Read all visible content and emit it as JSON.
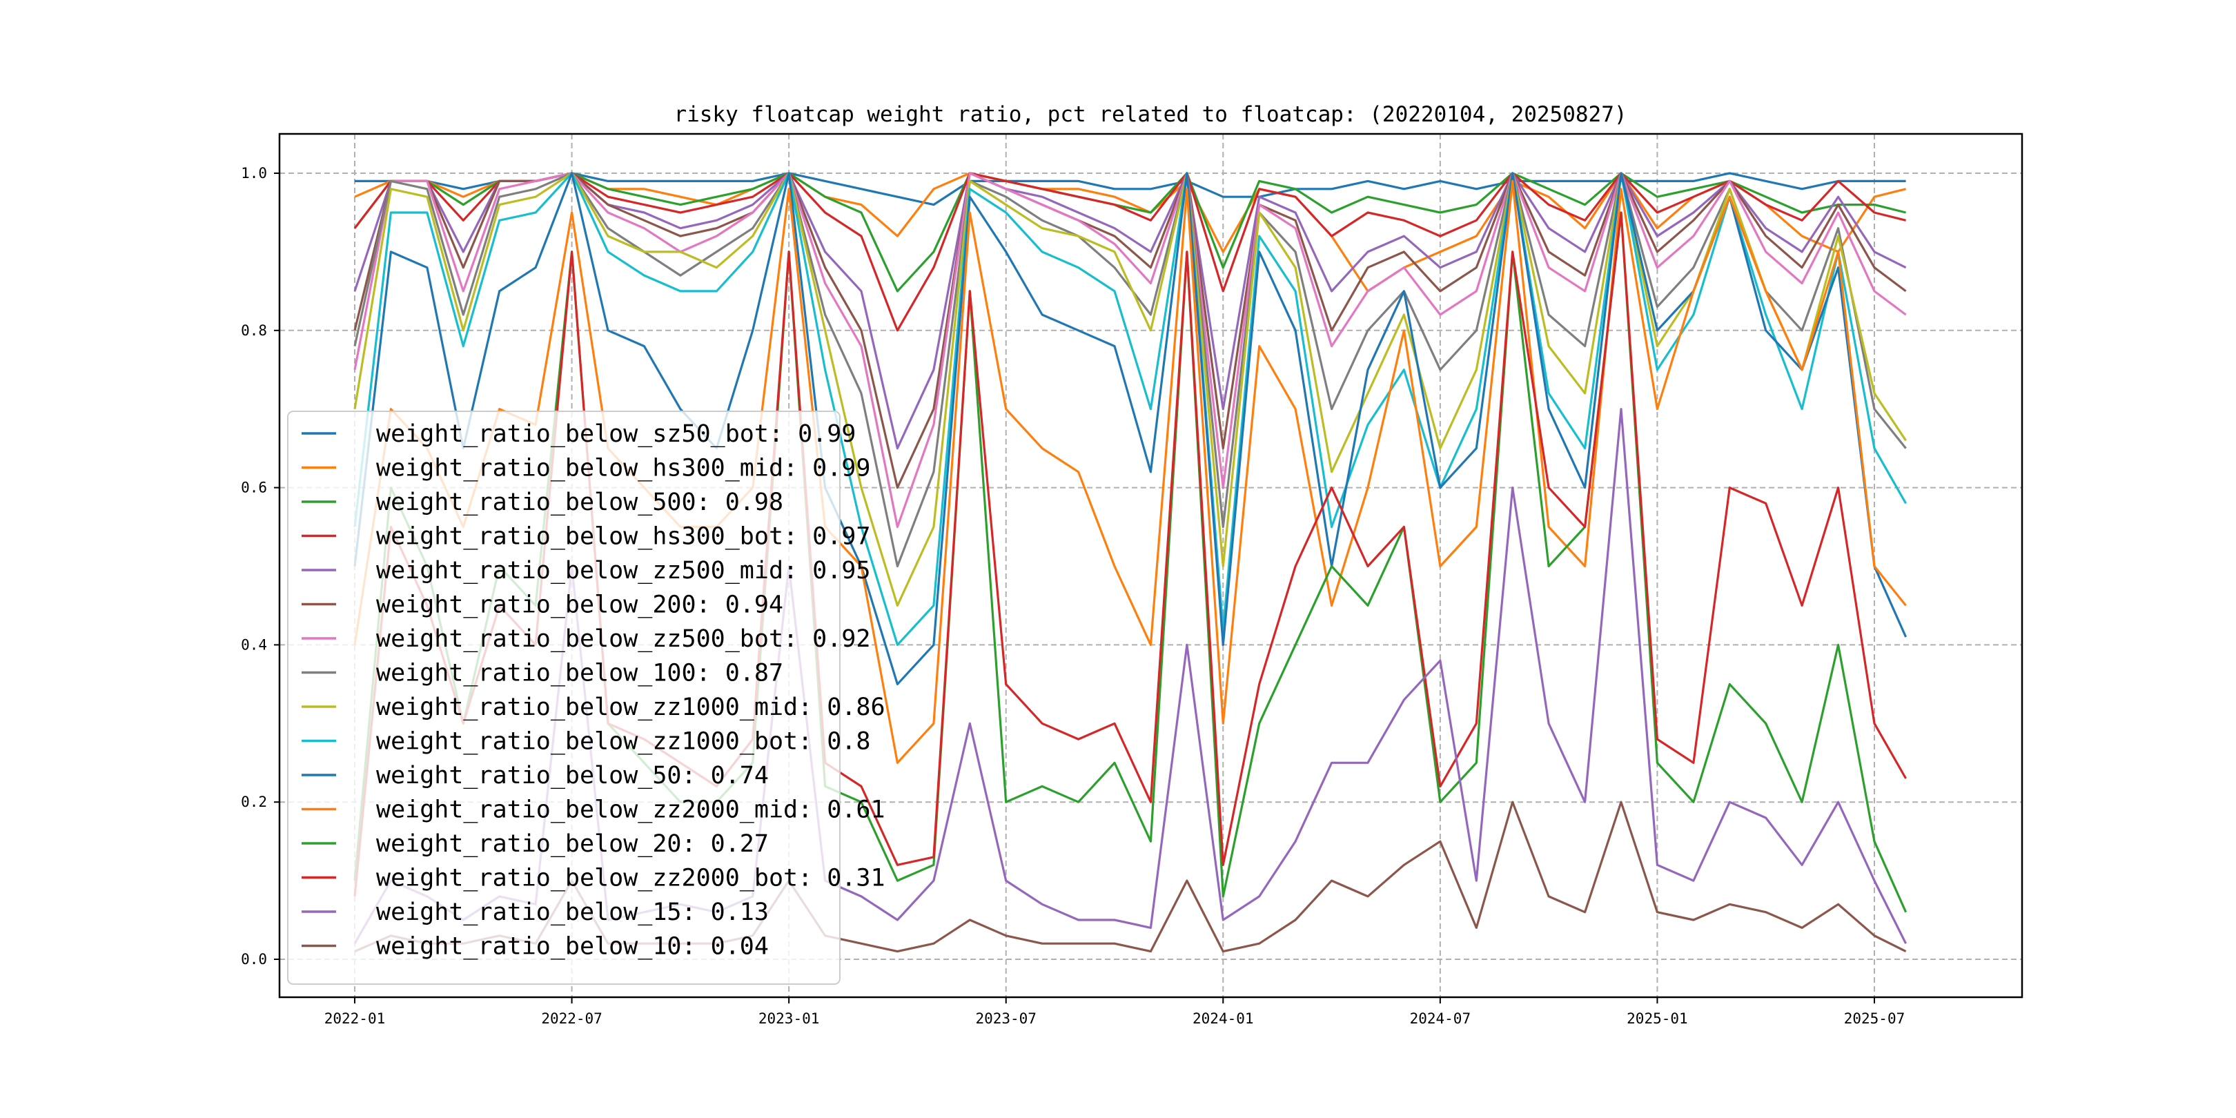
{
  "chart_data": {
    "type": "line",
    "title": "risky floatcap weight ratio, pct related to floatcap: (20220104, 20250827)",
    "xlabel": "",
    "ylabel": "",
    "ylim": [
      -0.05,
      1.05
    ],
    "grid": true,
    "legend_placement": "lower-left",
    "x": [
      "2022-01",
      "2022-02",
      "2022-03",
      "2022-04",
      "2022-05",
      "2022-06",
      "2022-07",
      "2022-08",
      "2022-09",
      "2022-10",
      "2022-11",
      "2022-12",
      "2023-01",
      "2023-02",
      "2023-03",
      "2023-04",
      "2023-05",
      "2023-06",
      "2023-07",
      "2023-08",
      "2023-09",
      "2023-10",
      "2023-11",
      "2023-12",
      "2024-01",
      "2024-02",
      "2024-03",
      "2024-04",
      "2024-05",
      "2024-06",
      "2024-07",
      "2024-08",
      "2024-09",
      "2024-10",
      "2024-11",
      "2024-12",
      "2025-01",
      "2025-02",
      "2025-03",
      "2025-04",
      "2025-05",
      "2025-06",
      "2025-07",
      "2025-08"
    ],
    "x_ticks": [
      "2022-01",
      "2022-07",
      "2023-01",
      "2023-07",
      "2024-01",
      "2024-07",
      "2025-01",
      "2025-07"
    ],
    "y_ticks": [
      "0.0",
      "0.2",
      "0.4",
      "0.6",
      "0.8",
      "1.0"
    ],
    "series": [
      {
        "name": "weight_ratio_below_sz50_bot: 0.99",
        "color": "#1f77b4",
        "values": [
          0.99,
          0.99,
          0.99,
          0.98,
          0.99,
          0.99,
          1.0,
          0.99,
          0.99,
          0.99,
          0.99,
          0.99,
          1.0,
          0.99,
          0.98,
          0.97,
          0.96,
          0.99,
          0.99,
          0.99,
          0.99,
          0.98,
          0.98,
          0.99,
          0.97,
          0.97,
          0.98,
          0.98,
          0.99,
          0.98,
          0.99,
          0.98,
          0.99,
          0.99,
          0.99,
          0.99,
          0.99,
          0.99,
          1.0,
          0.99,
          0.98,
          0.99,
          0.99,
          0.99
        ]
      },
      {
        "name": "weight_ratio_below_hs300_mid: 0.99",
        "color": "#ff7f0e",
        "values": [
          0.97,
          0.99,
          0.99,
          0.97,
          0.99,
          0.99,
          1.0,
          0.98,
          0.98,
          0.97,
          0.96,
          0.98,
          1.0,
          0.97,
          0.96,
          0.92,
          0.98,
          1.0,
          0.99,
          0.98,
          0.98,
          0.97,
          0.95,
          0.99,
          0.9,
          0.98,
          0.97,
          0.92,
          0.85,
          0.88,
          0.9,
          0.92,
          0.99,
          0.97,
          0.93,
          1.0,
          0.93,
          0.97,
          0.99,
          0.96,
          0.92,
          0.9,
          0.97,
          0.98
        ]
      },
      {
        "name": "weight_ratio_below_500: 0.98",
        "color": "#2ca02c",
        "values": [
          0.93,
          0.99,
          0.99,
          0.96,
          0.99,
          0.99,
          1.0,
          0.98,
          0.97,
          0.96,
          0.97,
          0.98,
          1.0,
          0.97,
          0.95,
          0.85,
          0.9,
          1.0,
          0.99,
          0.98,
          0.97,
          0.96,
          0.95,
          1.0,
          0.88,
          0.99,
          0.98,
          0.95,
          0.97,
          0.96,
          0.95,
          0.96,
          1.0,
          0.98,
          0.96,
          1.0,
          0.97,
          0.98,
          0.99,
          0.97,
          0.95,
          0.96,
          0.96,
          0.95
        ]
      },
      {
        "name": "weight_ratio_below_hs300_bot: 0.97",
        "color": "#d62728",
        "values": [
          0.93,
          0.99,
          0.99,
          0.94,
          0.99,
          0.99,
          1.0,
          0.97,
          0.96,
          0.95,
          0.96,
          0.97,
          1.0,
          0.95,
          0.92,
          0.8,
          0.88,
          1.0,
          0.99,
          0.98,
          0.97,
          0.96,
          0.94,
          1.0,
          0.85,
          0.98,
          0.97,
          0.92,
          0.95,
          0.94,
          0.92,
          0.94,
          1.0,
          0.96,
          0.94,
          1.0,
          0.95,
          0.97,
          0.99,
          0.96,
          0.94,
          0.99,
          0.95,
          0.94
        ]
      },
      {
        "name": "weight_ratio_below_zz500_mid: 0.95",
        "color": "#9467bd",
        "values": [
          0.85,
          0.99,
          0.99,
          0.9,
          0.99,
          0.99,
          1.0,
          0.96,
          0.95,
          0.93,
          0.94,
          0.96,
          1.0,
          0.9,
          0.85,
          0.65,
          0.75,
          1.0,
          0.98,
          0.97,
          0.95,
          0.93,
          0.9,
          1.0,
          0.7,
          0.97,
          0.95,
          0.85,
          0.9,
          0.92,
          0.88,
          0.9,
          1.0,
          0.93,
          0.9,
          1.0,
          0.92,
          0.95,
          0.99,
          0.93,
          0.9,
          0.97,
          0.9,
          0.88
        ]
      },
      {
        "name": "weight_ratio_below_200: 0.94",
        "color": "#8c564b",
        "values": [
          0.8,
          0.99,
          0.99,
          0.88,
          0.99,
          0.99,
          1.0,
          0.96,
          0.94,
          0.92,
          0.93,
          0.95,
          1.0,
          0.88,
          0.8,
          0.6,
          0.7,
          1.0,
          0.98,
          0.96,
          0.94,
          0.92,
          0.88,
          1.0,
          0.65,
          0.96,
          0.94,
          0.8,
          0.88,
          0.9,
          0.85,
          0.88,
          1.0,
          0.9,
          0.87,
          1.0,
          0.9,
          0.94,
          0.99,
          0.92,
          0.88,
          0.96,
          0.88,
          0.85
        ]
      },
      {
        "name": "weight_ratio_below_zz500_bot: 0.92",
        "color": "#e377c2",
        "values": [
          0.75,
          0.99,
          0.99,
          0.85,
          0.98,
          0.99,
          1.0,
          0.95,
          0.93,
          0.9,
          0.92,
          0.95,
          1.0,
          0.86,
          0.78,
          0.55,
          0.68,
          1.0,
          0.98,
          0.96,
          0.94,
          0.91,
          0.86,
          1.0,
          0.6,
          0.96,
          0.93,
          0.78,
          0.85,
          0.88,
          0.82,
          0.85,
          1.0,
          0.88,
          0.85,
          1.0,
          0.88,
          0.92,
          0.99,
          0.9,
          0.86,
          0.95,
          0.85,
          0.82
        ]
      },
      {
        "name": "weight_ratio_below_100: 0.87",
        "color": "#7f7f7f",
        "values": [
          0.78,
          0.99,
          0.98,
          0.82,
          0.97,
          0.98,
          1.0,
          0.93,
          0.9,
          0.87,
          0.9,
          0.93,
          1.0,
          0.82,
          0.72,
          0.5,
          0.62,
          0.99,
          0.97,
          0.94,
          0.92,
          0.88,
          0.82,
          1.0,
          0.55,
          0.95,
          0.9,
          0.7,
          0.8,
          0.85,
          0.75,
          0.8,
          1.0,
          0.82,
          0.78,
          1.0,
          0.83,
          0.88,
          0.98,
          0.85,
          0.8,
          0.93,
          0.7,
          0.65
        ]
      },
      {
        "name": "weight_ratio_below_zz1000_mid: 0.86",
        "color": "#bcbd22",
        "values": [
          0.7,
          0.98,
          0.97,
          0.8,
          0.96,
          0.97,
          1.0,
          0.92,
          0.9,
          0.9,
          0.88,
          0.92,
          1.0,
          0.8,
          0.6,
          0.45,
          0.55,
          0.99,
          0.96,
          0.93,
          0.92,
          0.9,
          0.8,
          1.0,
          0.5,
          0.95,
          0.88,
          0.62,
          0.72,
          0.82,
          0.65,
          0.75,
          1.0,
          0.78,
          0.72,
          1.0,
          0.78,
          0.85,
          0.98,
          0.85,
          0.75,
          0.92,
          0.72,
          0.66
        ]
      },
      {
        "name": "weight_ratio_below_zz1000_bot: 0.8",
        "color": "#17becf",
        "values": [
          0.55,
          0.95,
          0.95,
          0.78,
          0.94,
          0.95,
          1.0,
          0.9,
          0.87,
          0.85,
          0.85,
          0.9,
          1.0,
          0.75,
          0.55,
          0.4,
          0.45,
          0.98,
          0.95,
          0.9,
          0.88,
          0.85,
          0.7,
          1.0,
          0.42,
          0.92,
          0.85,
          0.55,
          0.68,
          0.75,
          0.6,
          0.7,
          1.0,
          0.72,
          0.65,
          1.0,
          0.75,
          0.82,
          0.97,
          0.82,
          0.7,
          0.9,
          0.65,
          0.58
        ]
      },
      {
        "name": "weight_ratio_below_50: 0.74",
        "color": "#1f77b4",
        "values": [
          0.5,
          0.9,
          0.88,
          0.65,
          0.85,
          0.88,
          1.0,
          0.8,
          0.78,
          0.7,
          0.65,
          0.8,
          1.0,
          0.6,
          0.5,
          0.35,
          0.4,
          0.97,
          0.9,
          0.82,
          0.8,
          0.78,
          0.62,
          1.0,
          0.4,
          0.9,
          0.8,
          0.5,
          0.75,
          0.85,
          0.6,
          0.65,
          1.0,
          0.7,
          0.6,
          1.0,
          0.8,
          0.85,
          0.97,
          0.8,
          0.75,
          0.88,
          0.5,
          0.41
        ]
      },
      {
        "name": "weight_ratio_below_zz2000_mid: 0.61",
        "color": "#ff7f0e",
        "values": [
          0.4,
          0.7,
          0.65,
          0.55,
          0.7,
          0.68,
          0.95,
          0.65,
          0.6,
          0.55,
          0.55,
          0.6,
          0.98,
          0.55,
          0.5,
          0.25,
          0.3,
          0.95,
          0.7,
          0.65,
          0.62,
          0.5,
          0.4,
          0.98,
          0.3,
          0.78,
          0.7,
          0.45,
          0.6,
          0.8,
          0.5,
          0.55,
          0.99,
          0.55,
          0.5,
          0.98,
          0.7,
          0.85,
          0.97,
          0.85,
          0.75,
          0.9,
          0.5,
          0.45
        ]
      },
      {
        "name": "weight_ratio_below_20: 0.27",
        "color": "#2ca02c",
        "values": [
          0.1,
          0.6,
          0.5,
          0.3,
          0.5,
          0.45,
          0.9,
          0.3,
          0.25,
          0.2,
          0.2,
          0.25,
          0.9,
          0.22,
          0.2,
          0.1,
          0.12,
          0.85,
          0.2,
          0.22,
          0.2,
          0.25,
          0.15,
          0.9,
          0.08,
          0.3,
          0.4,
          0.5,
          0.45,
          0.55,
          0.2,
          0.25,
          0.9,
          0.5,
          0.55,
          0.95,
          0.25,
          0.2,
          0.35,
          0.3,
          0.2,
          0.4,
          0.15,
          0.06
        ]
      },
      {
        "name": "weight_ratio_below_zz2000_bot: 0.31",
        "color": "#d62728",
        "values": [
          0.08,
          0.55,
          0.45,
          0.3,
          0.45,
          0.4,
          0.9,
          0.3,
          0.28,
          0.25,
          0.22,
          0.28,
          0.9,
          0.25,
          0.22,
          0.12,
          0.13,
          0.85,
          0.35,
          0.3,
          0.28,
          0.3,
          0.2,
          0.9,
          0.12,
          0.35,
          0.5,
          0.6,
          0.5,
          0.55,
          0.22,
          0.3,
          0.9,
          0.6,
          0.55,
          0.95,
          0.28,
          0.25,
          0.6,
          0.58,
          0.45,
          0.6,
          0.3,
          0.23
        ]
      },
      {
        "name": "weight_ratio_below_15: 0.13",
        "color": "#9467bd",
        "values": [
          0.02,
          0.1,
          0.08,
          0.05,
          0.08,
          0.07,
          0.5,
          0.05,
          0.06,
          0.07,
          0.06,
          0.08,
          0.5,
          0.1,
          0.08,
          0.05,
          0.1,
          0.3,
          0.1,
          0.07,
          0.05,
          0.05,
          0.04,
          0.4,
          0.05,
          0.08,
          0.15,
          0.25,
          0.25,
          0.33,
          0.38,
          0.1,
          0.6,
          0.3,
          0.2,
          0.7,
          0.12,
          0.1,
          0.2,
          0.18,
          0.12,
          0.2,
          0.1,
          0.02
        ]
      },
      {
        "name": "weight_ratio_below_10: 0.04",
        "color": "#8c564b",
        "values": [
          0.01,
          0.03,
          0.02,
          0.02,
          0.03,
          0.02,
          0.1,
          0.02,
          0.02,
          0.02,
          0.02,
          0.03,
          0.1,
          0.03,
          0.02,
          0.01,
          0.02,
          0.05,
          0.03,
          0.02,
          0.02,
          0.02,
          0.01,
          0.1,
          0.01,
          0.02,
          0.05,
          0.1,
          0.08,
          0.12,
          0.15,
          0.04,
          0.2,
          0.08,
          0.06,
          0.2,
          0.06,
          0.05,
          0.07,
          0.06,
          0.04,
          0.07,
          0.03,
          0.01
        ]
      }
    ]
  }
}
